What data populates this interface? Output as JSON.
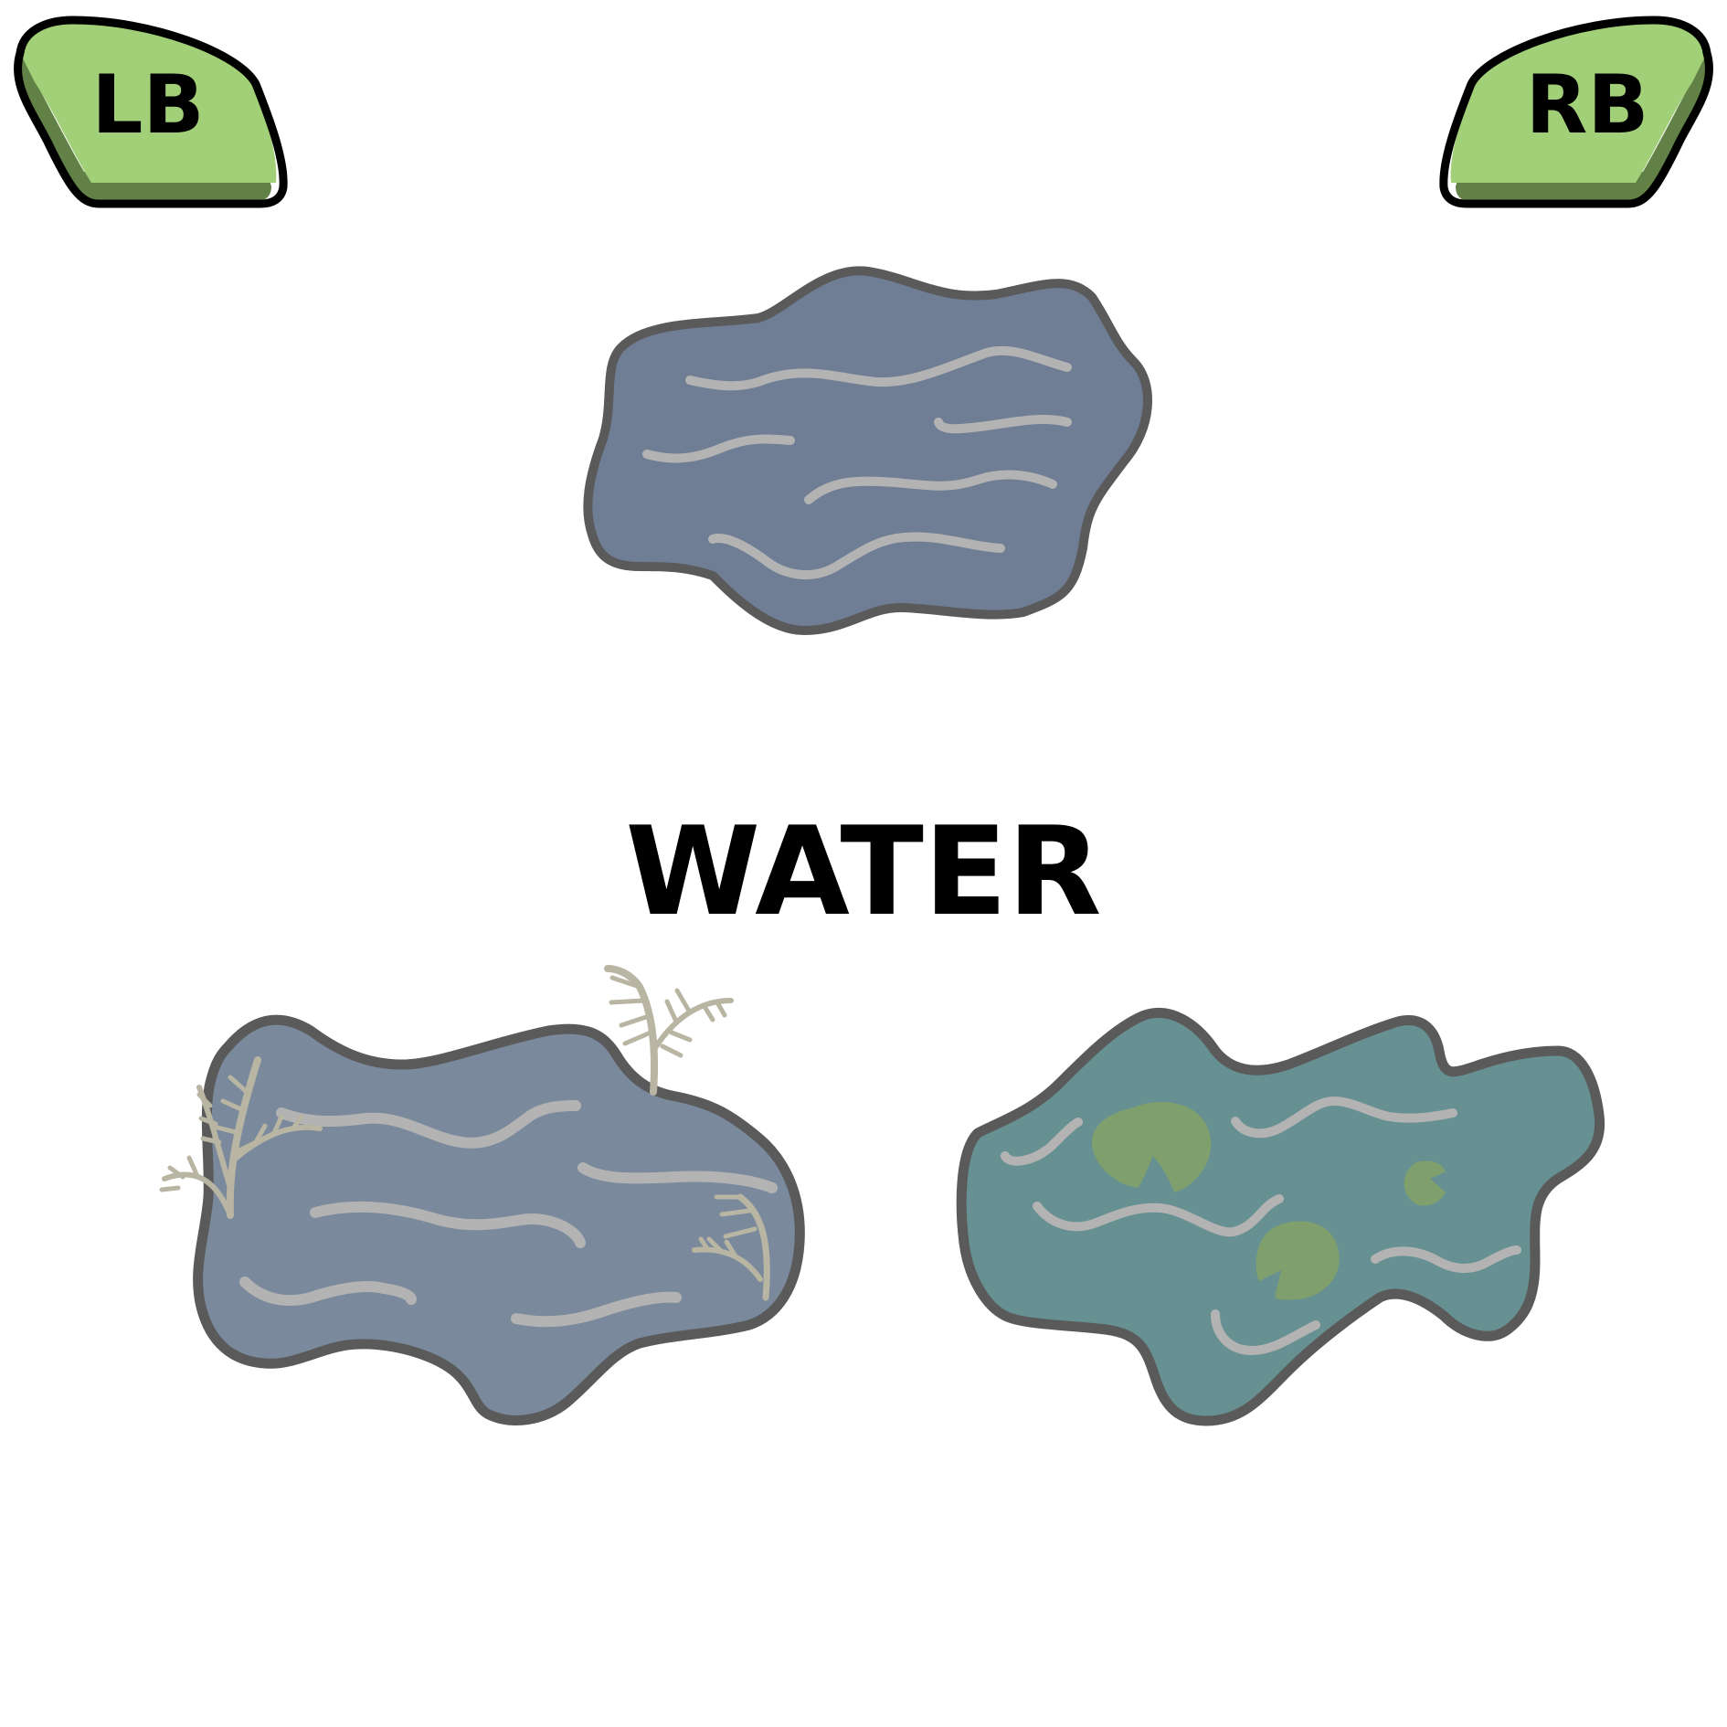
{
  "title": "WATER",
  "shoulder_buttons": {
    "left_label": "LB",
    "right_label": "RB"
  },
  "colors": {
    "button_fill": "#a2d078",
    "button_shadow": "#628146",
    "button_outline": "#000000",
    "pond_outline": "#5a5a5a",
    "pond_plain_fill": "#6f7e95",
    "pond_reeds_fill": "#7a8a9c",
    "pond_lilies_fill": "#679092",
    "wave": "#b3b3b3",
    "lily_pad": "#7fa06c",
    "reed": "#b8b5a3"
  },
  "items": [
    {
      "name": "plain-pond",
      "icon": "pond-plain-icon"
    },
    {
      "name": "reed-pond",
      "icon": "pond-reeds-icon"
    },
    {
      "name": "lily-pond",
      "icon": "pond-lilies-icon"
    }
  ]
}
